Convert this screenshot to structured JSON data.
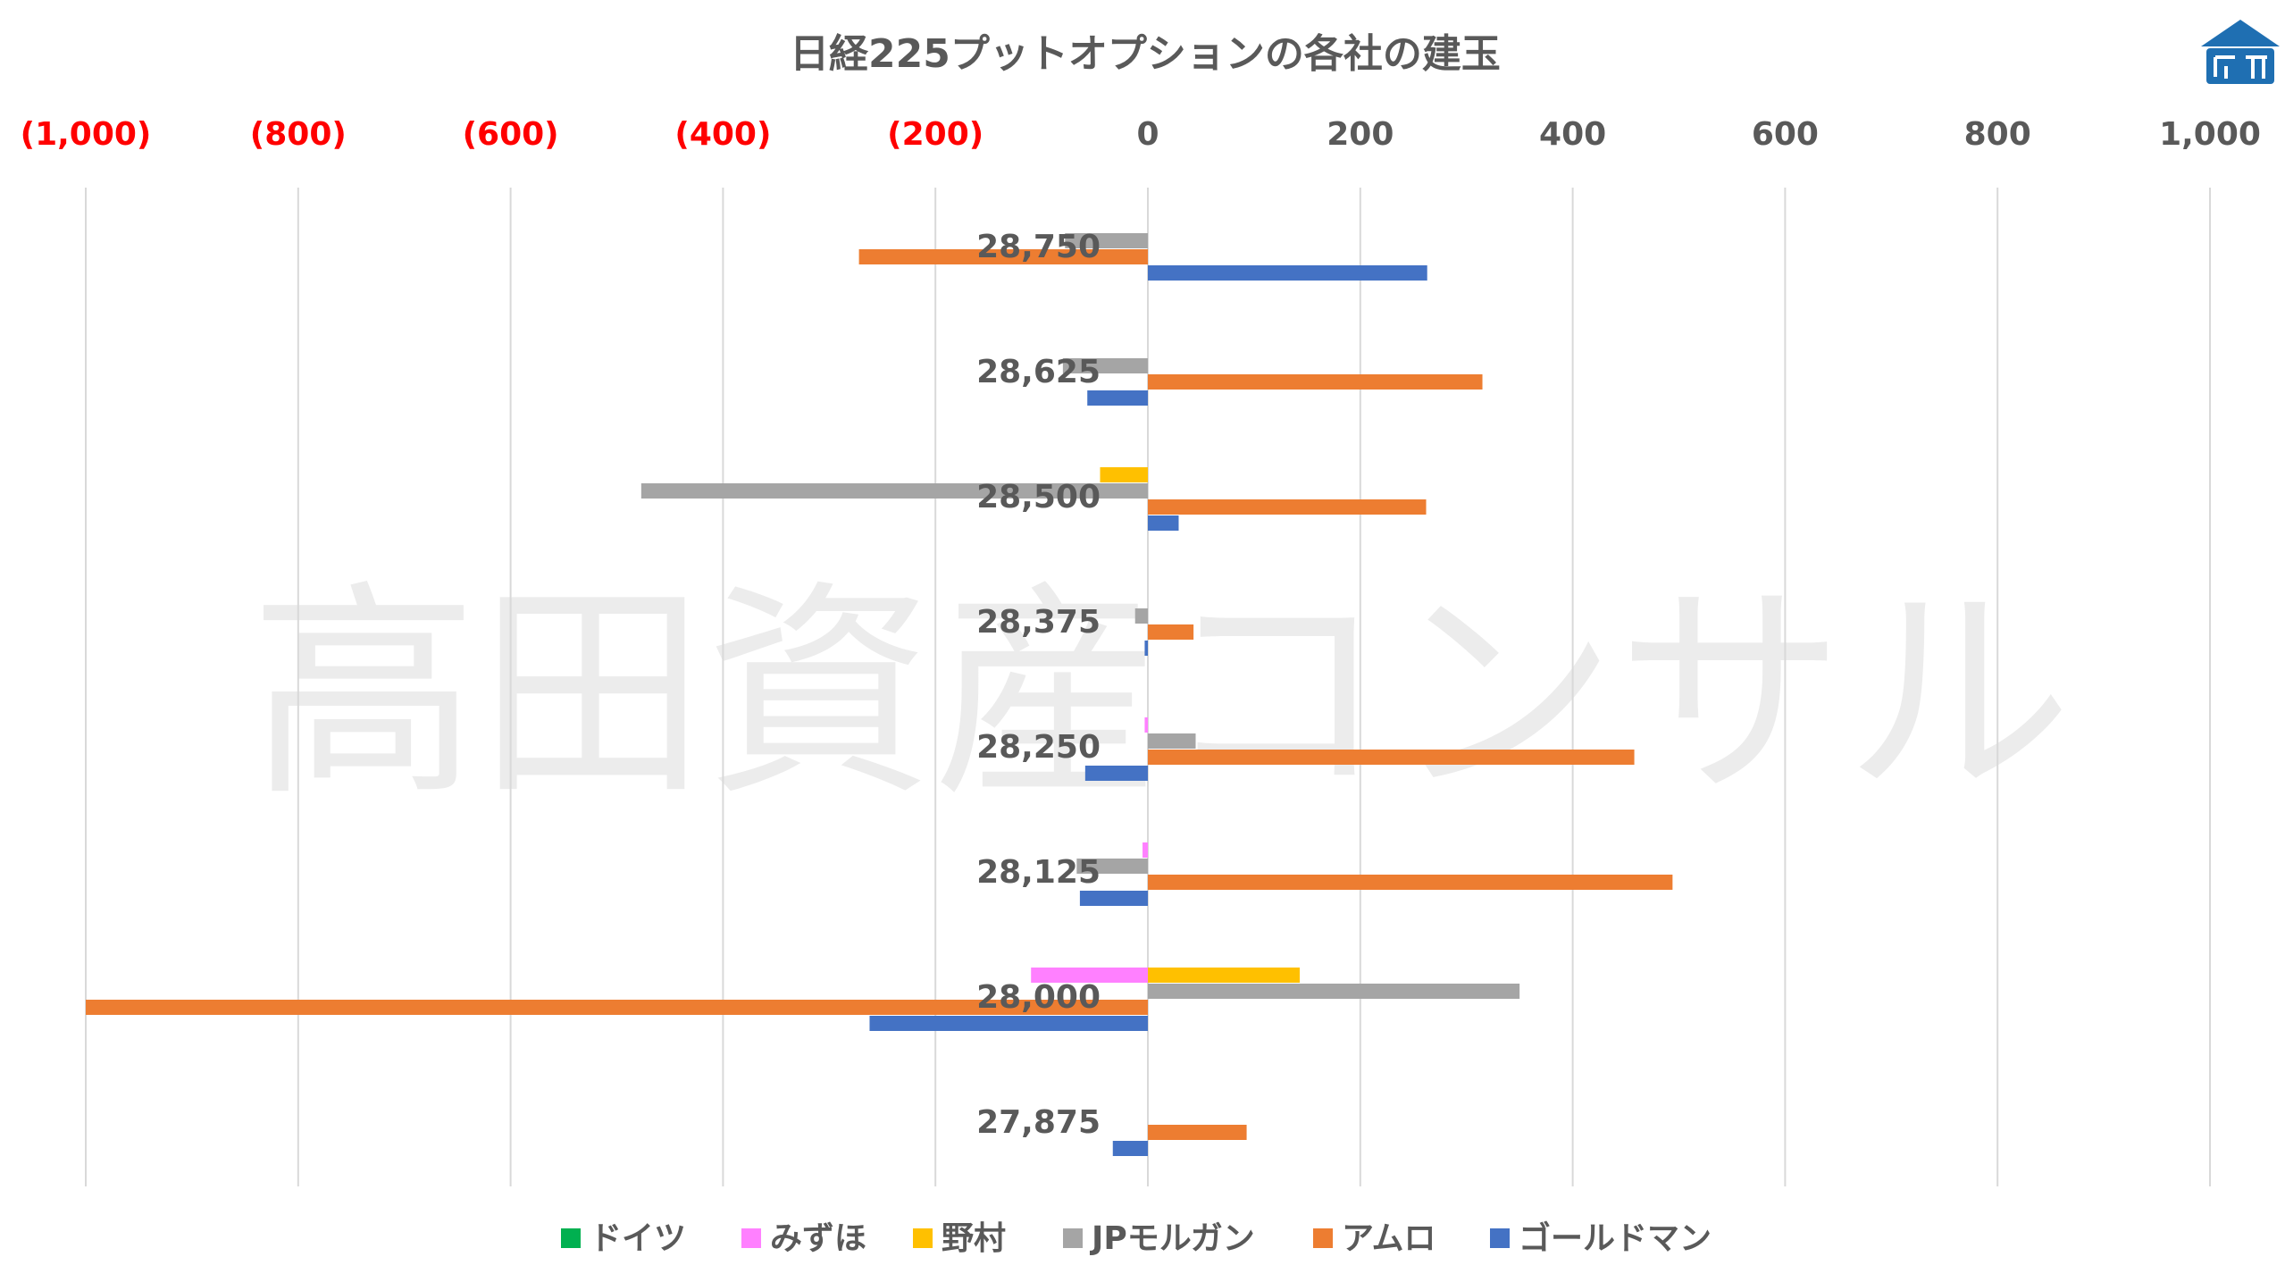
{
  "chart_data": {
    "type": "bar",
    "orientation": "horizontal",
    "title": "日経225プットオプションの各社の建玉",
    "watermark": "高田資産コンサル",
    "xlim": [
      -1000,
      1000
    ],
    "grid": true,
    "legend_position": "bottom",
    "x_ticks": [
      {
        "value": -1000,
        "label": "(1,000)"
      },
      {
        "value": -800,
        "label": "(800)"
      },
      {
        "value": -600,
        "label": "(600)"
      },
      {
        "value": -400,
        "label": "(400)"
      },
      {
        "value": -200,
        "label": "(200)"
      },
      {
        "value": 0,
        "label": "0"
      },
      {
        "value": 200,
        "label": "200"
      },
      {
        "value": 400,
        "label": "400"
      },
      {
        "value": 600,
        "label": "600"
      },
      {
        "value": 800,
        "label": "800"
      },
      {
        "value": 1000,
        "label": "1,000"
      }
    ],
    "categories": [
      "28,750",
      "28,625",
      "28,500",
      "28,375",
      "28,250",
      "28,125",
      "28,000",
      "27,875"
    ],
    "series": [
      {
        "name": "ドイツ",
        "color": "#00b050",
        "values": [
          0,
          0,
          0,
          0,
          0,
          0,
          0,
          0
        ]
      },
      {
        "name": "みずほ",
        "color": "#ff80ff",
        "values": [
          0,
          0,
          0,
          0,
          -3,
          -5,
          -110,
          0
        ]
      },
      {
        "name": "野村",
        "color": "#ffc000",
        "values": [
          0,
          0,
          -45,
          0,
          0,
          0,
          143,
          0
        ]
      },
      {
        "name": "JPモルガン",
        "color": "#a5a5a5",
        "values": [
          -78,
          -80,
          -477,
          -12,
          45,
          -67,
          350,
          0
        ]
      },
      {
        "name": "アムロ",
        "color": "#ed7d31",
        "values": [
          -272,
          315,
          262,
          43,
          458,
          494,
          -1000,
          93
        ]
      },
      {
        "name": "ゴールドマン",
        "color": "#4472c4",
        "values": [
          263,
          -57,
          29,
          -3,
          -59,
          -64,
          -262,
          -33
        ]
      }
    ],
    "colors": {
      "negative_tick": "#ff0000",
      "positive_tick": "#595959",
      "category_label": "#595959",
      "title": "#595959",
      "grid": "#d9d9d9",
      "watermark": "#ececec"
    }
  },
  "logo": {
    "name": "logo-icon",
    "color": "#1f6fb2"
  }
}
